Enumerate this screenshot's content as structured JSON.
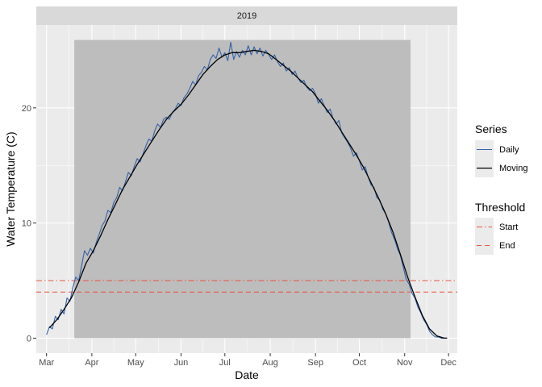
{
  "chart_data": {
    "type": "line",
    "facet_label": "2019",
    "xlabel": "Date",
    "ylabel": "Water Temperature (C)",
    "x_tick_labels": [
      "Mar",
      "Apr",
      "May",
      "Jun",
      "Jul",
      "Aug",
      "Sep",
      "Oct",
      "Nov",
      "Dec"
    ],
    "x_tick_dates": [
      "2019-03-01",
      "2019-04-01",
      "2019-05-01",
      "2019-06-01",
      "2019-07-01",
      "2019-08-01",
      "2019-09-01",
      "2019-10-01",
      "2019-11-01",
      "2019-12-01"
    ],
    "y_ticks": [
      0,
      10,
      20
    ],
    "y_tick_labels": [
      "0",
      "10",
      "20"
    ],
    "xlim": [
      "2019-02-22",
      "2019-12-07"
    ],
    "ylim": [
      -1.3,
      27.2
    ],
    "grid": true,
    "legend_placement": "right",
    "shaded_period": {
      "start": "2019-03-20",
      "end": "2019-11-05",
      "ymax": 25.9,
      "color": "#bdbdbd"
    },
    "thresholds": {
      "title": "Threshold",
      "items": [
        {
          "name": "Start",
          "value": 5,
          "linetype": "dotdash",
          "color": "#e8533c"
        },
        {
          "name": "End",
          "value": 4,
          "linetype": "dashed",
          "color": "#e8533c"
        }
      ]
    },
    "series_legend": {
      "title": "Series",
      "items": [
        {
          "name": "Daily",
          "color": "#3461a8"
        },
        {
          "name": "Moving",
          "color": "#000000"
        }
      ]
    },
    "series": [
      {
        "name": "Daily",
        "color": "#3461a8",
        "points": [
          [
            "2019-03-01",
            0.3
          ],
          [
            "2019-03-03",
            1.0
          ],
          [
            "2019-03-05",
            0.8
          ],
          [
            "2019-03-07",
            1.9
          ],
          [
            "2019-03-09",
            1.6
          ],
          [
            "2019-03-11",
            2.5
          ],
          [
            "2019-03-13",
            2.1
          ],
          [
            "2019-03-15",
            3.5
          ],
          [
            "2019-03-17",
            3.2
          ],
          [
            "2019-03-19",
            4.4
          ],
          [
            "2019-03-21",
            5.3
          ],
          [
            "2019-03-23",
            5.0
          ],
          [
            "2019-03-25",
            6.3
          ],
          [
            "2019-03-27",
            7.6
          ],
          [
            "2019-03-29",
            7.2
          ],
          [
            "2019-03-31",
            7.8
          ],
          [
            "2019-04-02",
            7.4
          ],
          [
            "2019-04-04",
            8.3
          ],
          [
            "2019-04-06",
            9.0
          ],
          [
            "2019-04-08",
            9.8
          ],
          [
            "2019-04-10",
            10.2
          ],
          [
            "2019-04-12",
            11.1
          ],
          [
            "2019-04-14",
            10.9
          ],
          [
            "2019-04-16",
            11.8
          ],
          [
            "2019-04-18",
            12.2
          ],
          [
            "2019-04-20",
            13.1
          ],
          [
            "2019-04-22",
            12.8
          ],
          [
            "2019-04-24",
            13.6
          ],
          [
            "2019-04-26",
            14.4
          ],
          [
            "2019-04-28",
            14.1
          ],
          [
            "2019-04-30",
            14.9
          ],
          [
            "2019-05-02",
            15.6
          ],
          [
            "2019-05-04",
            15.3
          ],
          [
            "2019-05-06",
            16.0
          ],
          [
            "2019-05-08",
            16.7
          ],
          [
            "2019-05-10",
            17.3
          ],
          [
            "2019-05-12",
            17.1
          ],
          [
            "2019-05-14",
            18.0
          ],
          [
            "2019-05-16",
            18.6
          ],
          [
            "2019-05-18",
            18.3
          ],
          [
            "2019-05-20",
            19.0
          ],
          [
            "2019-05-22",
            19.2
          ],
          [
            "2019-05-24",
            19.0
          ],
          [
            "2019-05-26",
            19.6
          ],
          [
            "2019-05-28",
            19.9
          ],
          [
            "2019-05-30",
            20.4
          ],
          [
            "2019-06-01",
            20.2
          ],
          [
            "2019-06-03",
            20.9
          ],
          [
            "2019-06-05",
            21.2
          ],
          [
            "2019-06-07",
            21.7
          ],
          [
            "2019-06-09",
            22.3
          ],
          [
            "2019-06-11",
            22.0
          ],
          [
            "2019-06-13",
            22.8
          ],
          [
            "2019-06-15",
            23.1
          ],
          [
            "2019-06-17",
            23.6
          ],
          [
            "2019-06-19",
            23.3
          ],
          [
            "2019-06-21",
            24.2
          ],
          [
            "2019-06-23",
            24.6
          ],
          [
            "2019-06-25",
            24.3
          ],
          [
            "2019-06-27",
            25.2
          ],
          [
            "2019-06-29",
            24.4
          ],
          [
            "2019-07-01",
            24.8
          ],
          [
            "2019-07-03",
            24.1
          ],
          [
            "2019-07-05",
            25.7
          ],
          [
            "2019-07-07",
            24.2
          ],
          [
            "2019-07-09",
            24.9
          ],
          [
            "2019-07-11",
            24.4
          ],
          [
            "2019-07-13",
            25.0
          ],
          [
            "2019-07-15",
            24.6
          ],
          [
            "2019-07-17",
            25.4
          ],
          [
            "2019-07-19",
            24.6
          ],
          [
            "2019-07-21",
            25.3
          ],
          [
            "2019-07-23",
            24.7
          ],
          [
            "2019-07-25",
            25.2
          ],
          [
            "2019-07-27",
            24.5
          ],
          [
            "2019-07-29",
            25.0
          ],
          [
            "2019-07-31",
            24.6
          ],
          [
            "2019-08-02",
            24.2
          ],
          [
            "2019-08-04",
            24.6
          ],
          [
            "2019-08-06",
            24.0
          ],
          [
            "2019-08-08",
            23.6
          ],
          [
            "2019-08-10",
            23.9
          ],
          [
            "2019-08-12",
            23.2
          ],
          [
            "2019-08-14",
            23.5
          ],
          [
            "2019-08-16",
            22.9
          ],
          [
            "2019-08-18",
            23.2
          ],
          [
            "2019-08-20",
            22.6
          ],
          [
            "2019-08-22",
            22.2
          ],
          [
            "2019-08-24",
            22.4
          ],
          [
            "2019-08-26",
            21.8
          ],
          [
            "2019-08-28",
            21.5
          ],
          [
            "2019-08-30",
            21.7
          ],
          [
            "2019-09-01",
            21.2
          ],
          [
            "2019-09-03",
            20.4
          ],
          [
            "2019-09-05",
            20.8
          ],
          [
            "2019-09-07",
            20.2
          ],
          [
            "2019-09-09",
            19.6
          ],
          [
            "2019-09-11",
            19.9
          ],
          [
            "2019-09-13",
            19.1
          ],
          [
            "2019-09-15",
            18.6
          ],
          [
            "2019-09-17",
            18.9
          ],
          [
            "2019-09-19",
            17.8
          ],
          [
            "2019-09-21",
            17.4
          ],
          [
            "2019-09-23",
            17.0
          ],
          [
            "2019-09-25",
            16.5
          ],
          [
            "2019-09-27",
            15.8
          ],
          [
            "2019-09-29",
            16.1
          ],
          [
            "2019-10-01",
            15.4
          ],
          [
            "2019-10-03",
            14.6
          ],
          [
            "2019-10-05",
            14.9
          ],
          [
            "2019-10-07",
            14.0
          ],
          [
            "2019-10-09",
            13.3
          ],
          [
            "2019-10-11",
            13.1
          ],
          [
            "2019-10-13",
            12.2
          ],
          [
            "2019-10-15",
            12.0
          ],
          [
            "2019-10-17",
            11.2
          ],
          [
            "2019-10-19",
            10.8
          ],
          [
            "2019-10-21",
            10.1
          ],
          [
            "2019-10-23",
            9.2
          ],
          [
            "2019-10-25",
            8.6
          ],
          [
            "2019-10-27",
            7.8
          ],
          [
            "2019-10-29",
            7.2
          ],
          [
            "2019-10-31",
            6.2
          ],
          [
            "2019-11-02",
            5.1
          ],
          [
            "2019-11-04",
            4.7
          ],
          [
            "2019-11-06",
            3.9
          ],
          [
            "2019-11-08",
            3.5
          ],
          [
            "2019-11-10",
            2.7
          ],
          [
            "2019-11-12",
            2.2
          ],
          [
            "2019-11-14",
            1.6
          ],
          [
            "2019-11-16",
            1.2
          ],
          [
            "2019-11-18",
            0.6
          ],
          [
            "2019-11-20",
            0.3
          ],
          [
            "2019-11-22",
            0.1
          ],
          [
            "2019-11-24",
            0.1
          ],
          [
            "2019-11-26",
            0.0
          ],
          [
            "2019-11-28",
            0.0
          ],
          [
            "2019-11-30",
            0.0
          ]
        ]
      },
      {
        "name": "Moving",
        "color": "#000000",
        "points": [
          [
            "2019-03-03",
            0.9
          ],
          [
            "2019-03-08",
            1.6
          ],
          [
            "2019-03-13",
            2.5
          ],
          [
            "2019-03-18",
            3.5
          ],
          [
            "2019-03-23",
            4.9
          ],
          [
            "2019-03-28",
            6.5
          ],
          [
            "2019-04-02",
            7.6
          ],
          [
            "2019-04-07",
            8.9
          ],
          [
            "2019-04-12",
            10.3
          ],
          [
            "2019-04-17",
            11.6
          ],
          [
            "2019-04-22",
            12.9
          ],
          [
            "2019-04-27",
            14.0
          ],
          [
            "2019-05-02",
            15.1
          ],
          [
            "2019-05-07",
            16.1
          ],
          [
            "2019-05-12",
            17.1
          ],
          [
            "2019-05-17",
            18.1
          ],
          [
            "2019-05-22",
            19.0
          ],
          [
            "2019-05-27",
            19.7
          ],
          [
            "2019-06-01",
            20.3
          ],
          [
            "2019-06-06",
            21.1
          ],
          [
            "2019-06-11",
            22.0
          ],
          [
            "2019-06-16",
            22.9
          ],
          [
            "2019-06-21",
            23.6
          ],
          [
            "2019-06-26",
            24.2
          ],
          [
            "2019-07-01",
            24.6
          ],
          [
            "2019-07-06",
            24.8
          ],
          [
            "2019-07-11",
            24.8
          ],
          [
            "2019-07-16",
            24.9
          ],
          [
            "2019-07-21",
            25.0
          ],
          [
            "2019-07-26",
            24.9
          ],
          [
            "2019-07-31",
            24.7
          ],
          [
            "2019-08-05",
            24.2
          ],
          [
            "2019-08-10",
            23.7
          ],
          [
            "2019-08-15",
            23.2
          ],
          [
            "2019-08-20",
            22.6
          ],
          [
            "2019-08-25",
            22.0
          ],
          [
            "2019-08-30",
            21.4
          ],
          [
            "2019-09-04",
            20.6
          ],
          [
            "2019-09-09",
            19.8
          ],
          [
            "2019-09-14",
            18.9
          ],
          [
            "2019-09-19",
            17.9
          ],
          [
            "2019-09-24",
            16.9
          ],
          [
            "2019-09-29",
            15.9
          ],
          [
            "2019-10-04",
            14.8
          ],
          [
            "2019-10-09",
            13.5
          ],
          [
            "2019-10-14",
            12.2
          ],
          [
            "2019-10-19",
            10.8
          ],
          [
            "2019-10-24",
            9.2
          ],
          [
            "2019-10-29",
            7.3
          ],
          [
            "2019-11-03",
            5.3
          ],
          [
            "2019-11-08",
            3.6
          ],
          [
            "2019-11-13",
            2.0
          ],
          [
            "2019-11-18",
            0.8
          ],
          [
            "2019-11-23",
            0.2
          ],
          [
            "2019-11-28",
            0.0
          ],
          [
            "2019-11-30",
            0.0
          ]
        ]
      }
    ]
  }
}
